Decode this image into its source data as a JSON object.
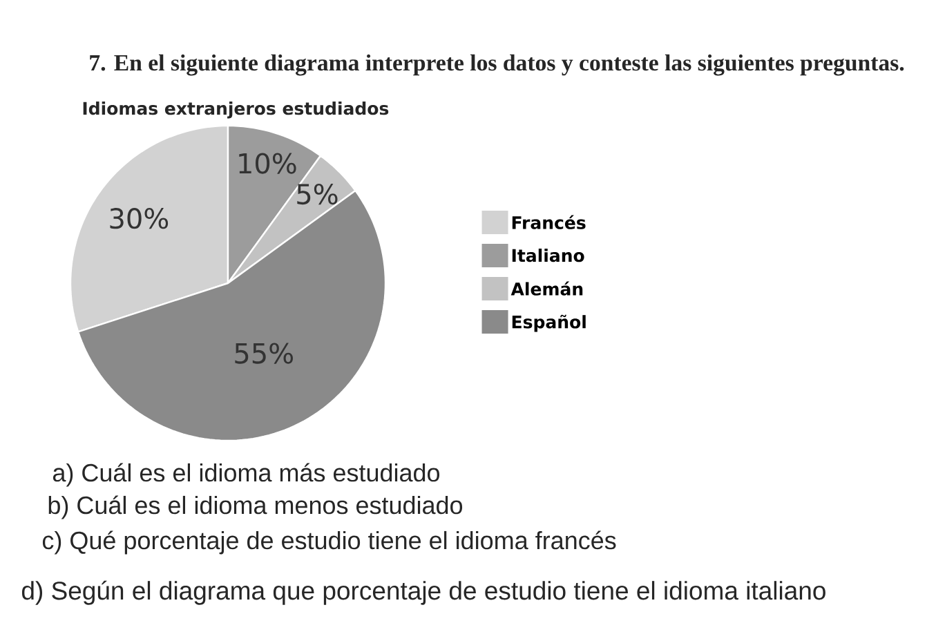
{
  "chart_data": {
    "type": "pie",
    "title": "Idiomas extranjeros estudiados",
    "categories": [
      "Francés",
      "Italiano",
      "Alemán",
      "Español"
    ],
    "values": [
      30,
      10,
      5,
      55
    ],
    "colors": [
      "#d2d2d2",
      "#9c9c9c",
      "#c2c2c2",
      "#8a8a8a"
    ],
    "value_labels": [
      "30%",
      "10%",
      "5%",
      "55%"
    ],
    "legend": "right",
    "annotations": [
      "7. En el siguiente diagrama interprete los datos y conteste las siguientes preguntas.",
      "a) Cuál es el idioma más estudiado",
      "b) Cuál es el idioma menos estudiado",
      "c) Qué porcentaje de estudio tiene el idioma francés",
      "d) Según el diagrama que porcentaje de estudio tiene el idioma italiano"
    ]
  }
}
